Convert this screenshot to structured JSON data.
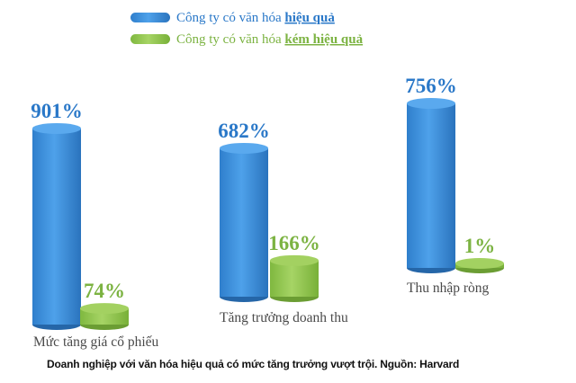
{
  "chart_data": {
    "type": "bar",
    "categories": [
      "Mức tăng giá cổ phiếu",
      "Tăng trưởng doanh thu",
      "Thu nhập ròng"
    ],
    "series": [
      {
        "name": "Công ty có văn hóa hiệu quả",
        "values": [
          901,
          682,
          756
        ],
        "labels": [
          "901%",
          "682%",
          "756%"
        ],
        "color": "#3a8fdc"
      },
      {
        "name": "Công ty có văn hóa kém hiệu quả",
        "values": [
          74,
          166,
          1
        ],
        "labels": [
          "74%",
          "166%",
          "1%"
        ],
        "color": "#8bc34a"
      }
    ],
    "legend": {
      "prefix": "Công ty có văn hóa ",
      "items": [
        {
          "emphasis": "hiệu quả",
          "color": "#2a78c8"
        },
        {
          "emphasis": "kém hiệu quả",
          "color": "#7cb342"
        }
      ],
      "position": "top-center"
    },
    "style": "3d-cylinder",
    "unit": "%"
  },
  "caption": "Doanh nghiệp với văn hóa hiệu quả có mức tăng trưởng vượt trội. Nguồn: Harvard"
}
